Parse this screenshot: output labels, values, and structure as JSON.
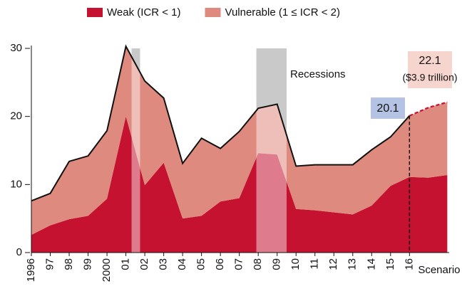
{
  "chart_data": {
    "type": "stacked-area",
    "legend": "top",
    "x": [
      1996,
      1997,
      1998,
      1999,
      2000,
      2001,
      2002,
      2003,
      2004,
      2005,
      2006,
      2007,
      2008,
      2009,
      2010,
      2011,
      2012,
      2013,
      2014,
      2015,
      2016,
      2017,
      2018
    ],
    "xlim": [
      1996,
      2018.1
    ],
    "xticks": [
      {
        "value": 1996,
        "label": "1996"
      },
      {
        "value": 1997,
        "label": "97"
      },
      {
        "value": 1998,
        "label": "98"
      },
      {
        "value": 1999,
        "label": "99"
      },
      {
        "value": 2000,
        "label": "2000"
      },
      {
        "value": 2001,
        "label": "01"
      },
      {
        "value": 2002,
        "label": "02"
      },
      {
        "value": 2003,
        "label": "03"
      },
      {
        "value": 2004,
        "label": "04"
      },
      {
        "value": 2005,
        "label": "05"
      },
      {
        "value": 2006,
        "label": "06"
      },
      {
        "value": 2007,
        "label": "07"
      },
      {
        "value": 2008,
        "label": "08"
      },
      {
        "value": 2009,
        "label": "09"
      },
      {
        "value": 2010,
        "label": "10"
      },
      {
        "value": 2011,
        "label": "11"
      },
      {
        "value": 2012,
        "label": "12"
      },
      {
        "value": 2013,
        "label": "13"
      },
      {
        "value": 2014,
        "label": "14"
      },
      {
        "value": 2015,
        "label": "15"
      },
      {
        "value": 2016,
        "label": "16"
      }
    ],
    "ylim": [
      0,
      30
    ],
    "yticks": [
      0,
      10,
      20,
      30
    ],
    "scenario_start": 2016,
    "scenario_label": "Scenario",
    "recessions_label": "Recessions",
    "recessions": [
      [
        2001.3,
        2001.75
      ],
      [
        2007.9,
        2009.5
      ]
    ],
    "series": [
      {
        "name": "Weak (ICR < 1)",
        "color": "#c41230",
        "values": [
          2.6,
          4.0,
          4.9,
          5.4,
          7.9,
          20.0,
          9.9,
          13.2,
          5.0,
          5.4,
          7.5,
          8.0,
          14.6,
          14.4,
          6.4,
          6.2,
          5.9,
          5.6,
          6.9,
          9.8,
          11.1,
          11.0,
          11.4
        ]
      },
      {
        "name": "Vulnerable (1 ≤ ICR < 2)",
        "color": "#de8a7e",
        "values": [
          5.0,
          4.7,
          8.5,
          8.8,
          10.0,
          10.3,
          15.3,
          9.5,
          8.1,
          11.4,
          7.8,
          9.8,
          6.6,
          7.4,
          6.3,
          6.7,
          7.0,
          7.3,
          8.2,
          7.2,
          9.0,
          10.3,
          10.7
        ]
      }
    ],
    "annotations": [
      {
        "text": "20.1",
        "color": "#b4c3e3"
      },
      {
        "text": "22.1",
        "subtext": "($3.9 trillion)",
        "color": "#f7d5cf"
      }
    ]
  }
}
